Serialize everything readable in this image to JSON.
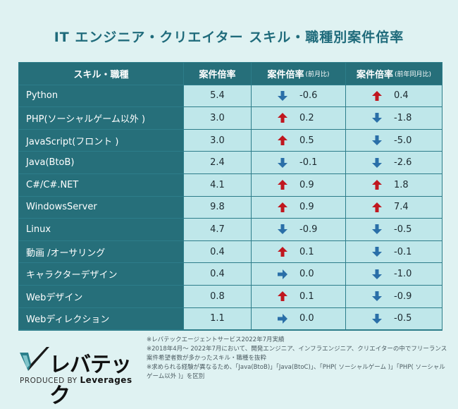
{
  "title": "IT エンジニア・クリエイター スキル・職種別案件倍率",
  "table": {
    "headers": {
      "skill": "スキル・職種",
      "ratio": "案件倍率",
      "mom_main": "案件倍率",
      "mom_small": "(前月比)",
      "yoy_main": "案件倍率",
      "yoy_small": "(前年同月比)"
    },
    "rows": [
      {
        "skill": "Python",
        "ratio": "5.4",
        "mom": "-0.6",
        "mom_dir": "down",
        "yoy": "0.4",
        "yoy_dir": "up"
      },
      {
        "skill": "PHP(ソーシャルゲーム以外 )",
        "ratio": "3.0",
        "mom": "0.2",
        "mom_dir": "up",
        "yoy": "-1.8",
        "yoy_dir": "down"
      },
      {
        "skill": "JavaScript(フロント )",
        "ratio": "3.0",
        "mom": "0.5",
        "mom_dir": "up",
        "yoy": "-5.0",
        "yoy_dir": "down"
      },
      {
        "skill": "Java(BtoB)",
        "ratio": "2.4",
        "mom": "-0.1",
        "mom_dir": "down",
        "yoy": "-2.6",
        "yoy_dir": "down"
      },
      {
        "skill": "C#/C#.NET",
        "ratio": "4.1",
        "mom": "0.9",
        "mom_dir": "up",
        "yoy": "1.8",
        "yoy_dir": "up"
      },
      {
        "skill": "WindowsServer",
        "ratio": "9.8",
        "mom": "0.9",
        "mom_dir": "up",
        "yoy": "7.4",
        "yoy_dir": "up"
      },
      {
        "skill": "Linux",
        "ratio": "4.7",
        "mom": "-0.9",
        "mom_dir": "down",
        "yoy": "-0.5",
        "yoy_dir": "down"
      },
      {
        "skill": "動画 /オーサリング",
        "ratio": "0.4",
        "mom": "0.1",
        "mom_dir": "up",
        "yoy": "-0.1",
        "yoy_dir": "down"
      },
      {
        "skill": "キャラクターデザイン",
        "ratio": "0.4",
        "mom": "0.0",
        "mom_dir": "flat",
        "yoy": "-1.0",
        "yoy_dir": "down"
      },
      {
        "skill": "Webデザイン",
        "ratio": "0.8",
        "mom": "0.1",
        "mom_dir": "up",
        "yoy": "-0.9",
        "yoy_dir": "down"
      },
      {
        "skill": "Webディレクション",
        "ratio": "1.1",
        "mom": "0.0",
        "mom_dir": "flat",
        "yoy": "-0.5",
        "yoy_dir": "down"
      }
    ]
  },
  "colors": {
    "up": "#c0171f",
    "down": "#2a6fa8",
    "flat": "#2a6fa8",
    "header": "#266f7a",
    "cell": "#bfe7ea"
  },
  "footnotes": [
    "※レバテックエージェントサービス2022年7月実績",
    "※2018年4月～ 2022年7月において、開発エンジニア、インフラエンジニア、クリエイターの中でフリーランス案件希望者数が多かったスキル・職種を抜粋",
    "※求められる経験が異なるため、「Java(BtoB)」「Java(BtoC)」、「PHP( ソーシャルゲーム )」「PHP( ソーシャルゲーム以外 )」を区別"
  ],
  "logo": {
    "wordmark": "レバテック",
    "produced_by": "PRODUCED BY",
    "brand": "Leverages"
  }
}
